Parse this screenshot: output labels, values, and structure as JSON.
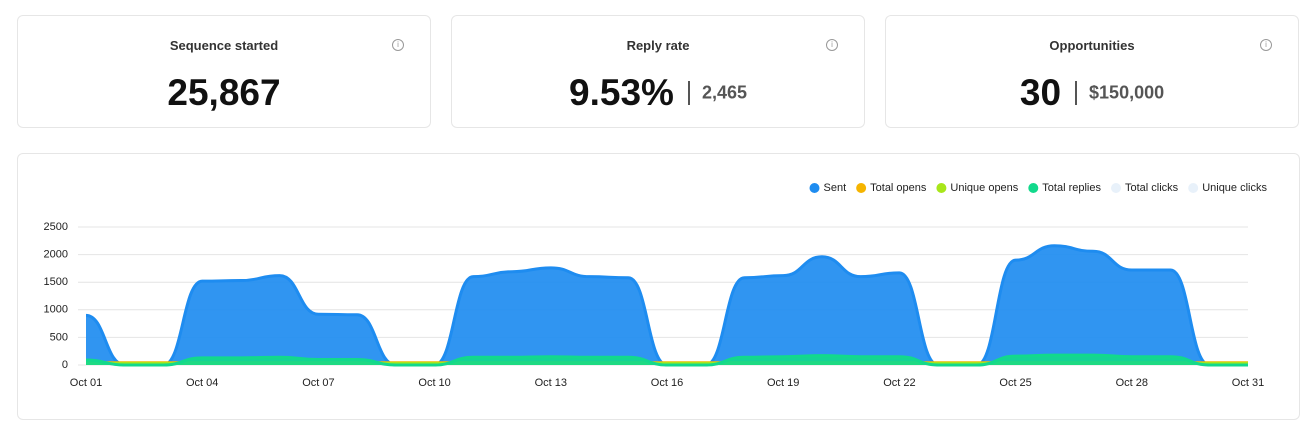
{
  "cards": [
    {
      "title": "Sequence started",
      "value": "25,867"
    },
    {
      "title": "Reply rate",
      "value": "9.53%",
      "secondary": "2,465"
    },
    {
      "title": "Opportunities",
      "value": "30",
      "secondary": "$150,000"
    }
  ],
  "chart_data": {
    "type": "area",
    "categories": [
      "Oct 01",
      null,
      null,
      "Oct 04",
      null,
      null,
      "Oct 07",
      null,
      null,
      "Oct 10",
      null,
      null,
      "Oct 13",
      null,
      null,
      "Oct 16",
      null,
      null,
      "Oct 19",
      null,
      null,
      "Oct 22",
      null,
      null,
      "Oct 25",
      null,
      null,
      "Oct 28",
      null,
      null,
      "Oct 31"
    ],
    "series": [
      {
        "name": "Sent",
        "color": "#1e8cf0",
        "values": [
          900,
          0,
          0,
          1520,
          1530,
          1620,
          920,
          910,
          0,
          0,
          1600,
          1690,
          1760,
          1600,
          1580,
          0,
          0,
          1580,
          1620,
          1960,
          1600,
          1670,
          0,
          0,
          1900,
          2160,
          2060,
          1720,
          1720,
          0,
          0
        ]
      },
      {
        "name": "Total opens",
        "color": "#f5b400",
        "values": [
          40,
          40,
          40,
          40,
          40,
          40,
          40,
          40,
          40,
          40,
          40,
          40,
          40,
          40,
          40,
          40,
          40,
          40,
          40,
          40,
          40,
          40,
          40,
          40,
          40,
          40,
          40,
          40,
          40,
          40,
          40
        ]
      },
      {
        "name": "Unique opens",
        "color": "#a8e61a",
        "values": [
          30,
          30,
          30,
          30,
          30,
          30,
          30,
          30,
          30,
          30,
          30,
          30,
          30,
          30,
          30,
          30,
          30,
          30,
          30,
          30,
          30,
          30,
          30,
          30,
          30,
          30,
          30,
          30,
          30,
          30,
          30
        ]
      },
      {
        "name": "Total replies",
        "color": "#12d98c",
        "values": [
          90,
          0,
          0,
          130,
          130,
          140,
          100,
          100,
          0,
          0,
          140,
          140,
          150,
          140,
          140,
          0,
          0,
          140,
          150,
          170,
          150,
          150,
          0,
          0,
          160,
          180,
          180,
          150,
          150,
          0,
          0
        ]
      },
      {
        "name": "Total clicks",
        "color": "#e8f1fa",
        "visible": false
      },
      {
        "name": "Unique clicks",
        "color": "#e8f1fa",
        "visible": false
      }
    ],
    "ylim": [
      0,
      2500
    ],
    "yticks": [
      0,
      500,
      1000,
      1500,
      2000,
      2500
    ],
    "grid": true,
    "legend": "top-right"
  }
}
